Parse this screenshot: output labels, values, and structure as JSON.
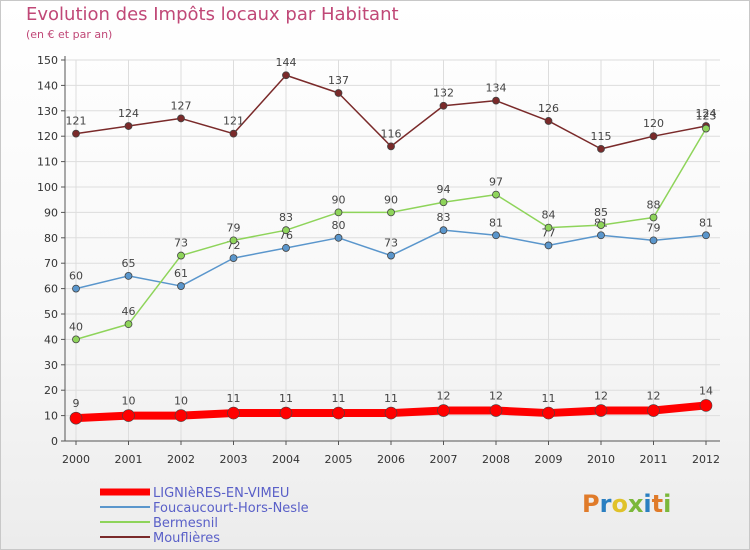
{
  "header": {
    "title": "Evolution des Impôts locaux par Habitant",
    "subtitle": "(en € et par an)"
  },
  "logo": {
    "text": "Proxiti",
    "colors": [
      "#e07b2a",
      "#2a7fc1",
      "#e0c22a",
      "#7bb83a",
      "#2a7fc1",
      "#e07b2a",
      "#7bb83a"
    ]
  },
  "chart_data": {
    "type": "line",
    "title": "Evolution des Impôts locaux par Habitant",
    "subtitle": "(en € et par an)",
    "x": [
      "2000",
      "2001",
      "2002",
      "2003",
      "2004",
      "2005",
      "2006",
      "2007",
      "2008",
      "2009",
      "2010",
      "2011",
      "2012"
    ],
    "ylim": [
      0,
      150
    ],
    "yticks": [
      0,
      10,
      20,
      30,
      40,
      50,
      60,
      70,
      80,
      90,
      100,
      110,
      120,
      130,
      140,
      150
    ],
    "grid": true,
    "legend_position": "bottom-left",
    "series": [
      {
        "name": "Mouflières",
        "color": "#7a2a2a",
        "values": [
          121,
          124,
          127,
          121,
          144,
          137,
          116,
          132,
          134,
          126,
          115,
          120,
          124
        ]
      },
      {
        "name": "Foucaucourt-Hors-Nesle",
        "color": "#5a96cc",
        "values": [
          60,
          65,
          61,
          72,
          76,
          80,
          73,
          83,
          81,
          77,
          81,
          79,
          81
        ]
      },
      {
        "name": "Bermesnil",
        "color": "#8ed45a",
        "values": [
          40,
          46,
          73,
          79,
          83,
          90,
          90,
          94,
          97,
          84,
          85,
          88,
          123
        ]
      },
      {
        "name": "LIGNIèRES-EN-VIMEU",
        "color": "#ff0000",
        "values": [
          9,
          10,
          10,
          11,
          11,
          11,
          11,
          12,
          12,
          11,
          12,
          12,
          14
        ]
      }
    ],
    "legend_order": [
      "LIGNIèRES-EN-VIMEU",
      "Foucaucourt-Hors-Nesle",
      "Bermesnil",
      "Mouflières"
    ]
  }
}
